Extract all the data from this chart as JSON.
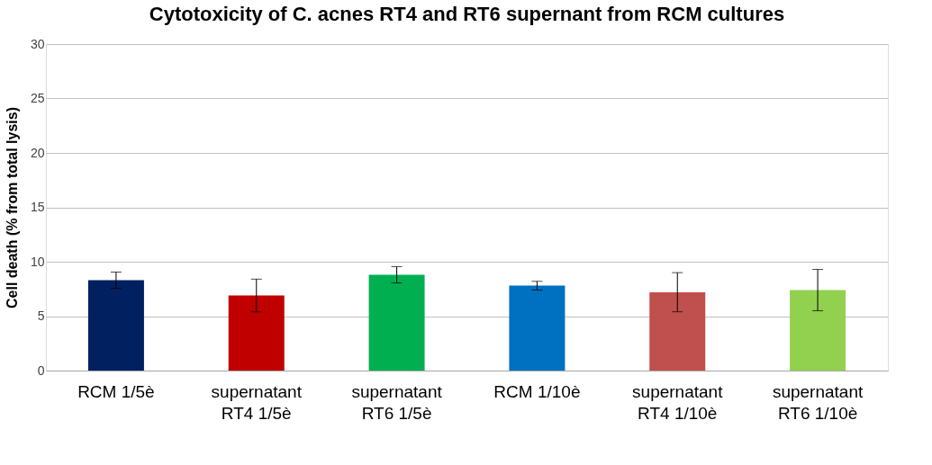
{
  "chart_data": {
    "type": "bar",
    "title": "Cytotoxicity of C. acnes RT4 and RT6 supernant from RCM cultures",
    "ylabel": "Cell death (% from total lysis)",
    "categories": [
      "RCM 1/5è",
      "supernatant RT4 1/5è",
      "supernatant RT6 1/5è",
      "RCM 1/10è",
      "supernatant RT4 1/10è",
      "supernatant RT6 1/10è"
    ],
    "values": [
      8.3,
      6.9,
      8.8,
      7.8,
      7.2,
      7.4
    ],
    "errors": [
      0.75,
      1.5,
      0.75,
      0.4,
      1.8,
      1.9
    ],
    "colors": [
      "#002060",
      "#c00000",
      "#00b050",
      "#0070c0",
      "#c0504d",
      "#92d050"
    ],
    "ylim": [
      0,
      30
    ],
    "yticks": [
      0,
      5,
      10,
      15,
      20,
      25,
      30
    ],
    "grid": "y"
  }
}
